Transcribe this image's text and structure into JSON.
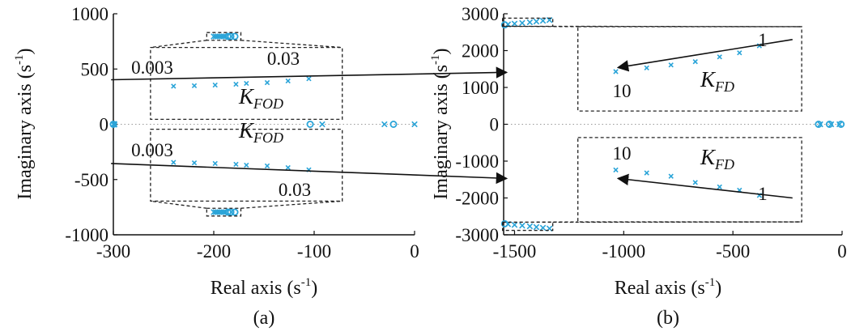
{
  "chart_data": [
    {
      "type": "scatter",
      "panel_label": "(a)",
      "xlabel": "Real axis (s",
      "ylabel": "Imaginary axis (s",
      "unit_sup": "-1",
      "unit_close": ")",
      "xlim": [
        -300,
        0
      ],
      "ylim": [
        -1000,
        1000
      ],
      "xticks": [
        -300,
        -200,
        -100,
        0
      ],
      "yticks": [
        -1000,
        -500,
        0,
        500,
        1000
      ],
      "zero_line": "dotted",
      "colors": {
        "marker": "#2aa4d8",
        "axis": "#111111",
        "box": "#222222"
      },
      "poles": [
        {
          "x": -300,
          "y": 0
        },
        {
          "x": -299,
          "y": 4
        },
        {
          "x": -299,
          "y": -4
        },
        {
          "x": -92,
          "y": 0
        },
        {
          "x": -30,
          "y": 0
        },
        {
          "x": 0,
          "y": 0
        },
        {
          "x": -200,
          "y": 795
        },
        {
          "x": -198,
          "y": 795
        },
        {
          "x": -196,
          "y": 795
        },
        {
          "x": -194,
          "y": 795
        },
        {
          "x": -192,
          "y": 795
        },
        {
          "x": -190,
          "y": 795
        },
        {
          "x": -188,
          "y": 795
        },
        {
          "x": -200,
          "y": -795
        },
        {
          "x": -198,
          "y": -795
        },
        {
          "x": -196,
          "y": -795
        },
        {
          "x": -194,
          "y": -795
        },
        {
          "x": -192,
          "y": -795
        },
        {
          "x": -190,
          "y": -795
        },
        {
          "x": -188,
          "y": -795
        }
      ],
      "zeros": [
        {
          "x": -300,
          "y": 0
        },
        {
          "x": -104,
          "y": 0
        },
        {
          "x": -21,
          "y": 0
        },
        {
          "x": -186,
          "y": 795
        },
        {
          "x": -183,
          "y": 795
        },
        {
          "x": -179,
          "y": 795
        },
        {
          "x": -186,
          "y": -795
        },
        {
          "x": -183,
          "y": -795
        },
        {
          "x": -179,
          "y": -795
        }
      ],
      "zoom_boxes": [
        {
          "region": {
            "x0": -207,
            "x1": -173,
            "y0": 760,
            "y1": 830
          },
          "box": {
            "x0": -263,
            "x1": -72,
            "y0": 45,
            "y1": 695
          },
          "view": {
            "x0": -201,
            "x1": -187
          },
          "series": [
            {
              "x": -201,
              "y": 345
            },
            {
              "x": -199,
              "y": 349
            },
            {
              "x": -197,
              "y": 355
            },
            {
              "x": -195,
              "y": 362
            },
            {
              "x": -194,
              "y": 370
            },
            {
              "x": -192,
              "y": 377
            },
            {
              "x": -190,
              "y": 392
            },
            {
              "x": -188,
              "y": 412
            }
          ],
          "arrow": {
            "x0": -207,
            "y0": 403,
            "x1": -169,
            "y1": 470
          },
          "start_label": "0.003",
          "end_label": "0.03",
          "param_label": "K",
          "param_sub": "FOD"
        },
        {
          "region": {
            "x0": -207,
            "x1": -173,
            "y0": -830,
            "y1": -760
          },
          "box": {
            "x0": -263,
            "x1": -72,
            "y0": -695,
            "y1": -45
          },
          "view": {
            "x0": -201,
            "x1": -187
          },
          "series": [
            {
              "x": -201,
              "y": -345
            },
            {
              "x": -199,
              "y": -349
            },
            {
              "x": -197,
              "y": -355
            },
            {
              "x": -195,
              "y": -362
            },
            {
              "x": -194,
              "y": -370
            },
            {
              "x": -192,
              "y": -377
            },
            {
              "x": -190,
              "y": -392
            },
            {
              "x": -188,
              "y": -412
            }
          ],
          "arrow": {
            "x0": -207,
            "y0": -355,
            "x1": -169,
            "y1": -490
          },
          "start_label": "0.003",
          "end_label": "0.03",
          "param_label": "K",
          "param_sub": "FOD"
        }
      ]
    },
    {
      "type": "scatter",
      "panel_label": "(b)",
      "xlabel": "Real axis (s",
      "ylabel": "Imaginary axis (s",
      "unit_sup": "-1",
      "unit_close": ")",
      "xlim": [
        -1550,
        0
      ],
      "ylim": [
        -3000,
        3000
      ],
      "xticks": [
        -1500,
        -1000,
        -500,
        0
      ],
      "yticks": [
        -3000,
        -2000,
        -1000,
        0,
        1000,
        2000,
        3000
      ],
      "zero_line": "dotted",
      "colors": {
        "marker": "#2aa4d8",
        "axis": "#111111",
        "box": "#222222"
      },
      "poles": [
        {
          "x": -1530,
          "y": 2710
        },
        {
          "x": -1500,
          "y": 2730
        },
        {
          "x": -1465,
          "y": 2750
        },
        {
          "x": -1430,
          "y": 2770
        },
        {
          "x": -1400,
          "y": 2790
        },
        {
          "x": -1370,
          "y": 2810
        },
        {
          "x": -1340,
          "y": 2830
        },
        {
          "x": -1530,
          "y": -2710
        },
        {
          "x": -1500,
          "y": -2730
        },
        {
          "x": -1465,
          "y": -2750
        },
        {
          "x": -1430,
          "y": -2770
        },
        {
          "x": -1400,
          "y": -2790
        },
        {
          "x": -1370,
          "y": -2810
        },
        {
          "x": -1340,
          "y": -2830
        },
        {
          "x": -100,
          "y": 0
        },
        {
          "x": -50,
          "y": 0
        },
        {
          "x": -12,
          "y": 0
        }
      ],
      "zeros": [
        {
          "x": -1545,
          "y": 2700
        },
        {
          "x": -1545,
          "y": -2700
        },
        {
          "x": -108,
          "y": 0
        },
        {
          "x": -58,
          "y": 0
        },
        {
          "x": -5,
          "y": 0
        }
      ],
      "zoom_boxes": [
        {
          "region": {
            "x0": -1555,
            "x1": -1325,
            "y0": 2660,
            "y1": 2880
          },
          "box": {
            "x0": -1210,
            "x1": -185,
            "y0": 360,
            "y1": 2650
          },
          "view": {
            "x0": -1150,
            "x1": -380
          },
          "series": [
            {
              "x": -1100,
              "y": 1430
            },
            {
              "x": -960,
              "y": 1530
            },
            {
              "x": -850,
              "y": 1610
            },
            {
              "x": -740,
              "y": 1700
            },
            {
              "x": -630,
              "y": 1830
            },
            {
              "x": -540,
              "y": 1940
            },
            {
              "x": -450,
              "y": 2130
            }
          ],
          "arrow": {
            "x0": -300,
            "y0": 2300,
            "x1": -1090,
            "y1": 1540
          },
          "start_label": "1",
          "end_label": "10",
          "param_label": "K",
          "param_sub": "FD"
        },
        {
          "region": {
            "x0": -1555,
            "x1": -1325,
            "y0": -2880,
            "y1": -2660
          },
          "box": {
            "x0": -1210,
            "x1": -185,
            "y0": -2650,
            "y1": -360
          },
          "view": {
            "x0": -1150,
            "x1": -380
          },
          "series": [
            {
              "x": -1100,
              "y": -1240
            },
            {
              "x": -960,
              "y": -1320
            },
            {
              "x": -850,
              "y": -1410
            },
            {
              "x": -740,
              "y": -1580
            },
            {
              "x": -630,
              "y": -1700
            },
            {
              "x": -540,
              "y": -1790
            },
            {
              "x": -450,
              "y": -1930
            }
          ],
          "arrow": {
            "x0": -300,
            "y0": -2000,
            "x1": -1090,
            "y1": -1470
          },
          "start_label": "1",
          "end_label": "10",
          "param_label": "K",
          "param_sub": "FD"
        }
      ]
    }
  ]
}
